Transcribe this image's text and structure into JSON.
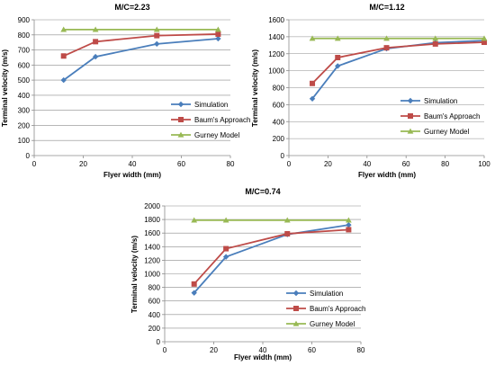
{
  "colors": {
    "simulation": "#4a7ebb",
    "baum": "#be4b48",
    "gurney": "#98b954",
    "grid": "#8c8c8c"
  },
  "chart_data": [
    {
      "type": "line",
      "title": "M/C=2.23",
      "xlabel": "Flyer width (mm)",
      "ylabel": "Terminal velocity (m/s)",
      "xlim": [
        0,
        80
      ],
      "ylim": [
        0,
        900
      ],
      "xticks": [
        0,
        20,
        40,
        60,
        80
      ],
      "yticks": [
        0,
        100,
        200,
        300,
        400,
        500,
        600,
        700,
        800,
        900
      ],
      "grid": "horizontal",
      "legend": "bottom-right",
      "series": [
        {
          "name": "Simulation",
          "marker": "diamond",
          "points": [
            [
              12,
              500
            ],
            [
              25,
              655
            ],
            [
              50,
              740
            ],
            [
              75,
              775
            ]
          ]
        },
        {
          "name": "Baum's Approach",
          "marker": "square",
          "points": [
            [
              12,
              660
            ],
            [
              25,
              755
            ],
            [
              50,
              795
            ],
            [
              75,
              805
            ]
          ]
        },
        {
          "name": "Gurney Model",
          "marker": "triangle",
          "points": [
            [
              12,
              835
            ],
            [
              25,
              835
            ],
            [
              50,
              835
            ],
            [
              75,
              835
            ]
          ]
        }
      ]
    },
    {
      "type": "line",
      "title": "M/C=1.12",
      "xlabel": "Flyer width (mm)",
      "ylabel": "Terminal velocity (m/s)",
      "xlim": [
        0,
        100
      ],
      "ylim": [
        0,
        1600
      ],
      "xticks": [
        0,
        20,
        40,
        60,
        80,
        100
      ],
      "yticks": [
        0,
        200,
        400,
        600,
        800,
        1000,
        1200,
        1400,
        1600
      ],
      "grid": "horizontal",
      "legend": "bottom-right",
      "series": [
        {
          "name": "Simulation",
          "marker": "diamond",
          "points": [
            [
              12,
              670
            ],
            [
              25,
              1055
            ],
            [
              50,
              1260
            ],
            [
              75,
              1330
            ],
            [
              100,
              1355
            ]
          ]
        },
        {
          "name": "Baum's Approach",
          "marker": "square",
          "points": [
            [
              12,
              850
            ],
            [
              25,
              1155
            ],
            [
              50,
              1270
            ],
            [
              75,
              1315
            ],
            [
              100,
              1335
            ]
          ]
        },
        {
          "name": "Gurney Model",
          "marker": "triangle",
          "points": [
            [
              12,
              1380
            ],
            [
              25,
              1380
            ],
            [
              50,
              1380
            ],
            [
              75,
              1380
            ],
            [
              100,
              1380
            ]
          ]
        }
      ]
    },
    {
      "type": "line",
      "title": "M/C=0.74",
      "xlabel": "Flyer width (mm)",
      "ylabel": "Terminal velocity (m/s)",
      "xlim": [
        0,
        80
      ],
      "ylim": [
        0,
        2000
      ],
      "xticks": [
        0,
        20,
        40,
        60,
        80
      ],
      "yticks": [
        0,
        200,
        400,
        600,
        800,
        1000,
        1200,
        1400,
        1600,
        1800,
        2000
      ],
      "grid": "horizontal",
      "legend": "bottom-right",
      "series": [
        {
          "name": "Simulation",
          "marker": "diamond",
          "points": [
            [
              12,
              720
            ],
            [
              25,
              1250
            ],
            [
              50,
              1580
            ],
            [
              75,
              1720
            ]
          ]
        },
        {
          "name": "Baum's Approach",
          "marker": "square",
          "points": [
            [
              12,
              850
            ],
            [
              25,
              1370
            ],
            [
              50,
              1590
            ],
            [
              75,
              1650
            ]
          ]
        },
        {
          "name": "Gurney Model",
          "marker": "triangle",
          "points": [
            [
              12,
              1790
            ],
            [
              25,
              1790
            ],
            [
              50,
              1790
            ],
            [
              75,
              1790
            ]
          ]
        }
      ]
    }
  ]
}
